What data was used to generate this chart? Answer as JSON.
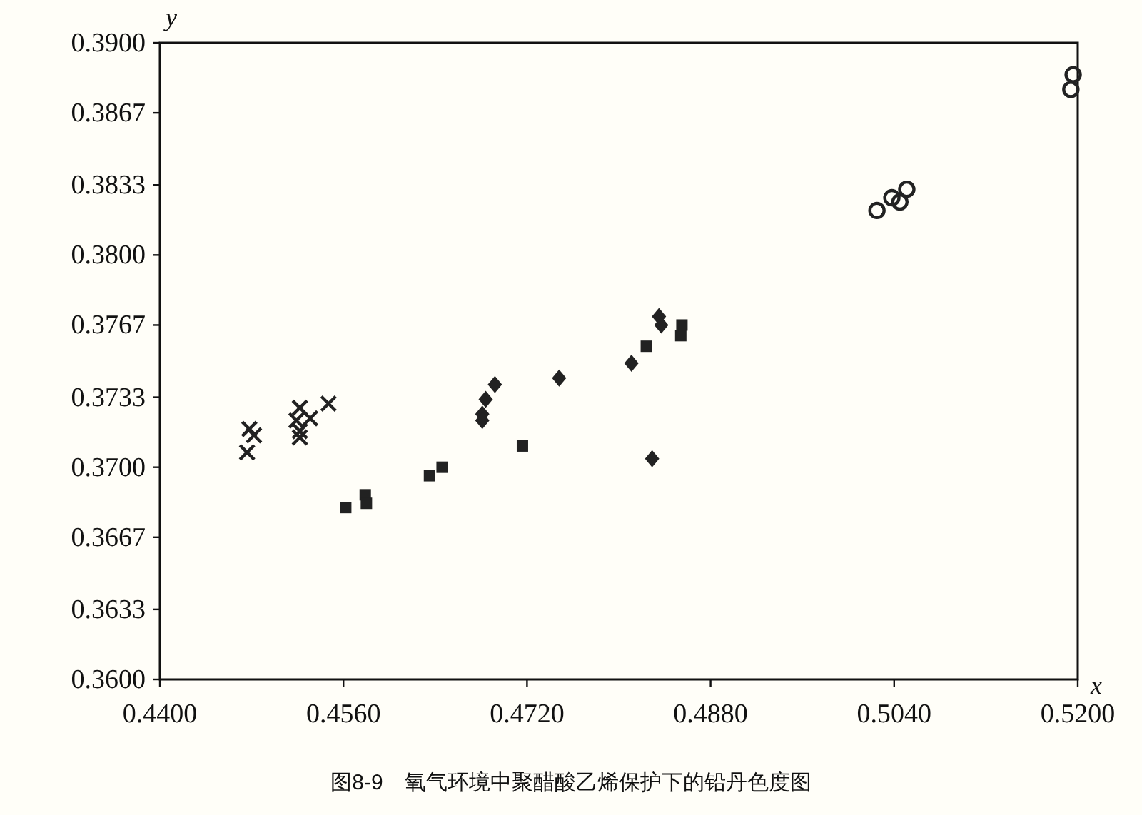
{
  "chart_data": {
    "type": "scatter",
    "title": "图8-9　氧气环境中聚醋酸乙烯保护下的铅丹色度图",
    "xlabel": "x",
    "ylabel": "y",
    "xlim": [
      0.44,
      0.52
    ],
    "ylim": [
      0.36,
      0.39
    ],
    "xticks": [
      {
        "value": 0.44,
        "label": "0.4400"
      },
      {
        "value": 0.456,
        "label": "0.4560"
      },
      {
        "value": 0.472,
        "label": "0.4720"
      },
      {
        "value": 0.488,
        "label": "0.4880"
      },
      {
        "value": 0.504,
        "label": "0.5040"
      },
      {
        "value": 0.52,
        "label": "0.5200"
      }
    ],
    "yticks": [
      {
        "value": 0.36,
        "label": "0.3600"
      },
      {
        "value": 0.3633,
        "label": "0.3633"
      },
      {
        "value": 0.3667,
        "label": "0.3667"
      },
      {
        "value": 0.37,
        "label": "0.3700"
      },
      {
        "value": 0.3733,
        "label": "0.3733"
      },
      {
        "value": 0.3767,
        "label": "0.3767"
      },
      {
        "value": 0.38,
        "label": "0.3800"
      },
      {
        "value": 0.3833,
        "label": "0.3833"
      },
      {
        "value": 0.3867,
        "label": "0.3867"
      },
      {
        "value": 0.39,
        "label": "0.3900"
      }
    ],
    "series": [
      {
        "color": "#222222",
        "marker": "cross",
        "x": [
          0.4478,
          0.4482,
          0.4476,
          0.4522,
          0.4531,
          0.4519,
          0.4522,
          0.4522,
          0.4547
        ],
        "values": [
          0.3718,
          0.3715,
          0.3707,
          0.3728,
          0.3723,
          0.3722,
          0.3717,
          0.3714,
          0.373
        ]
      },
      {
        "color": "#222222",
        "marker": "square",
        "x": [
          0.4562,
          0.4579,
          0.458,
          0.4635,
          0.4646,
          0.4716,
          0.4824,
          0.4855,
          0.4854
        ],
        "values": [
          0.3681,
          0.3687,
          0.3683,
          0.3696,
          0.37,
          0.371,
          0.3757,
          0.3767,
          0.3762
        ]
      },
      {
        "color": "#222222",
        "marker": "diamond",
        "x": [
          0.4692,
          0.4684,
          0.4681,
          0.4681,
          0.4748,
          0.4835,
          0.4837,
          0.4811,
          0.4829
        ],
        "values": [
          0.3739,
          0.3732,
          0.3725,
          0.3722,
          0.3742,
          0.3771,
          0.3767,
          0.3749,
          0.3704
        ]
      },
      {
        "color": "#222222",
        "marker": "circle",
        "x": [
          0.5025,
          0.5038,
          0.5045,
          0.5051,
          0.5194,
          0.5196
        ],
        "values": [
          0.3821,
          0.3827,
          0.3825,
          0.3831,
          0.3878,
          0.3885
        ]
      }
    ]
  }
}
